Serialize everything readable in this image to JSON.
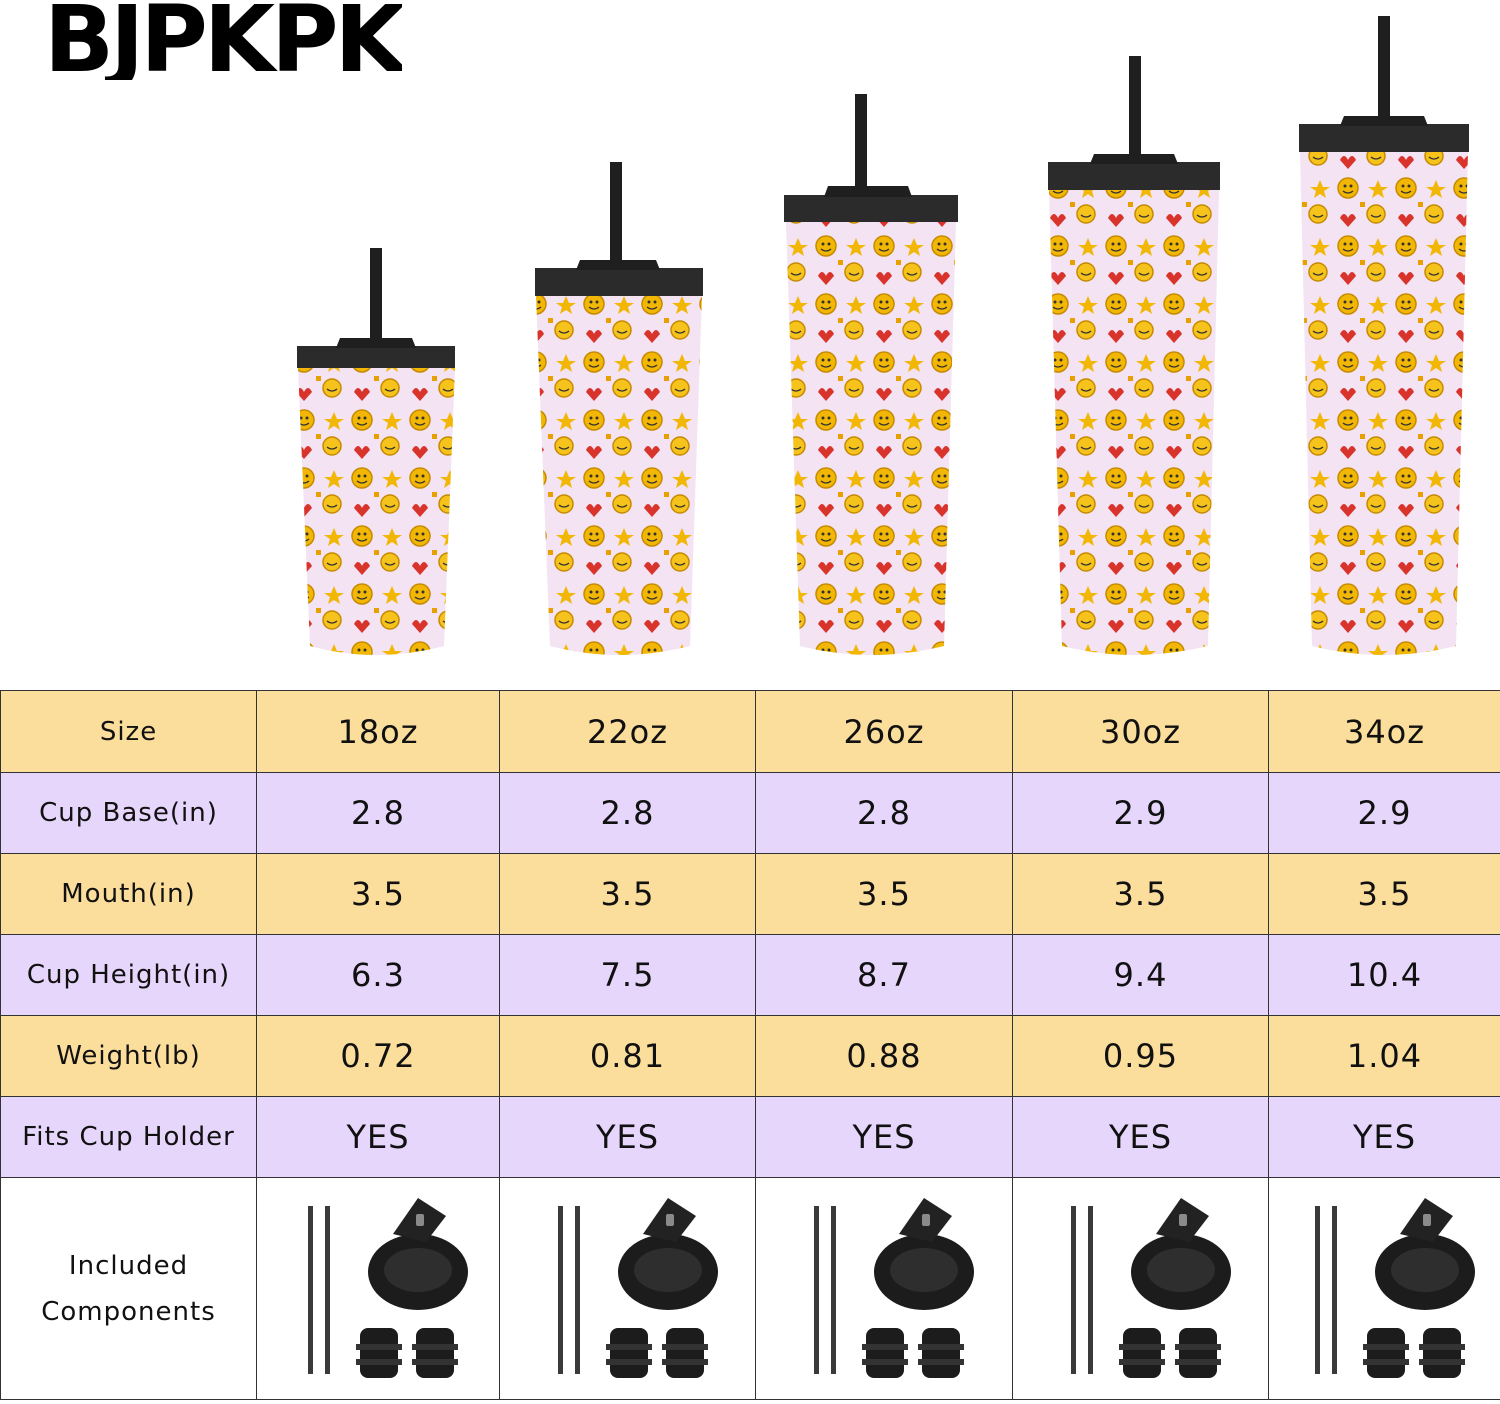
{
  "brand": {
    "logo_text": "BJPKPK"
  },
  "colors": {
    "header_row_bg": "#fbdd9c",
    "purple_row_bg": "#e6d6fb",
    "cup_body": "#f3e3f3",
    "lid": "#2b2b2b"
  },
  "table": {
    "columns": [
      "Size",
      "18oz",
      "22oz",
      "26oz",
      "30oz",
      "34oz"
    ],
    "rows": [
      {
        "label": "Cup Base(in)",
        "values": [
          "2.8",
          "2.8",
          "2.8",
          "2.9",
          "2.9"
        ]
      },
      {
        "label": "Mouth(in)",
        "values": [
          "3.5",
          "3.5",
          "3.5",
          "3.5",
          "3.5"
        ]
      },
      {
        "label": "Cup Height(in)",
        "values": [
          "6.3",
          "7.5",
          "8.7",
          "9.4",
          "10.4"
        ]
      },
      {
        "label": "Weight(lb)",
        "values": [
          "0.72",
          "0.81",
          "0.88",
          "0.95",
          "1.04"
        ]
      },
      {
        "label": "Fits Cup Holder",
        "values": [
          "YES",
          "YES",
          "YES",
          "YES",
          "YES"
        ]
      }
    ],
    "components": {
      "label_line1": "Included",
      "label_line2": "Components",
      "items": [
        "straws-icon",
        "lid-icon",
        "plug-icon"
      ]
    }
  }
}
